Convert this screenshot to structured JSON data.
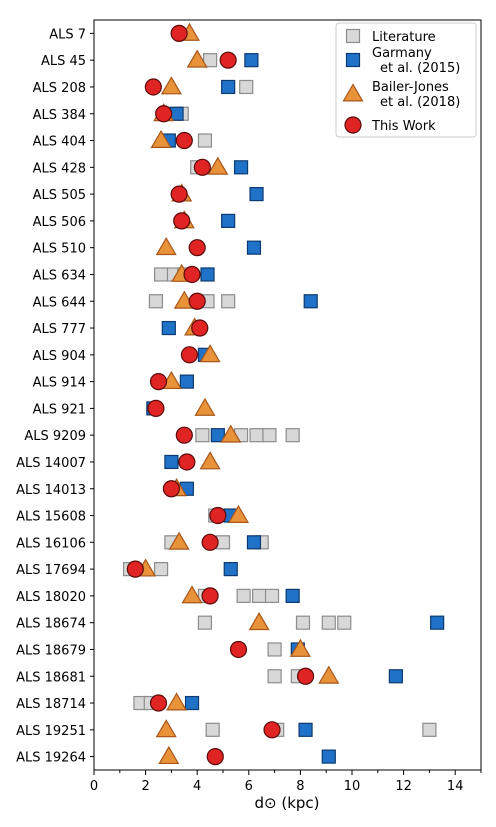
{
  "chart_data": {
    "type": "scatter",
    "xlabel": "d⊙ (kpc)",
    "xlim": [
      0,
      15
    ],
    "xticks": [
      0,
      2,
      4,
      6,
      8,
      10,
      12,
      14
    ],
    "grid": false,
    "legend_position": "top-right",
    "categories": [
      "ALS 7",
      "ALS 45",
      "ALS 208",
      "ALS 384",
      "ALS 404",
      "ALS 428",
      "ALS 505",
      "ALS 506",
      "ALS 510",
      "ALS 634",
      "ALS 644",
      "ALS 777",
      "ALS 904",
      "ALS 914",
      "ALS 921",
      "ALS 9209",
      "ALS 14007",
      "ALS 14013",
      "ALS 15608",
      "ALS 16106",
      "ALS 17694",
      "ALS 18020",
      "ALS 18674",
      "ALS 18679",
      "ALS 18681",
      "ALS 18714",
      "ALS 19251",
      "ALS 19264"
    ],
    "series": [
      {
        "name": "Literature",
        "marker": "square",
        "color": "#d8d8d8",
        "edge": "#8c8c8c",
        "points": [
          {
            "star": "ALS 45",
            "x": 4.5
          },
          {
            "star": "ALS 208",
            "x": 5.9
          },
          {
            "star": "ALS 384",
            "x": 3.4
          },
          {
            "star": "ALS 404",
            "x": 4.3
          },
          {
            "star": "ALS 428",
            "x": 4.0
          },
          {
            "star": "ALS 634",
            "x": 2.6
          },
          {
            "star": "ALS 634",
            "x": 3.1
          },
          {
            "star": "ALS 634",
            "x": 3.5
          },
          {
            "star": "ALS 644",
            "x": 2.4
          },
          {
            "star": "ALS 644",
            "x": 4.4
          },
          {
            "star": "ALS 644",
            "x": 5.2
          },
          {
            "star": "ALS 9209",
            "x": 4.2
          },
          {
            "star": "ALS 9209",
            "x": 5.7
          },
          {
            "star": "ALS 9209",
            "x": 6.3
          },
          {
            "star": "ALS 9209",
            "x": 6.8
          },
          {
            "star": "ALS 9209",
            "x": 7.7
          },
          {
            "star": "ALS 15608",
            "x": 4.7
          },
          {
            "star": "ALS 16106",
            "x": 3.0
          },
          {
            "star": "ALS 16106",
            "x": 5.0
          },
          {
            "star": "ALS 16106",
            "x": 6.5
          },
          {
            "star": "ALS 17694",
            "x": 1.4
          },
          {
            "star": "ALS 17694",
            "x": 2.6
          },
          {
            "star": "ALS 18020",
            "x": 4.3
          },
          {
            "star": "ALS 18020",
            "x": 5.8
          },
          {
            "star": "ALS 18020",
            "x": 6.4
          },
          {
            "star": "ALS 18020",
            "x": 6.9
          },
          {
            "star": "ALS 18674",
            "x": 4.3
          },
          {
            "star": "ALS 18674",
            "x": 8.1
          },
          {
            "star": "ALS 18674",
            "x": 9.1
          },
          {
            "star": "ALS 18674",
            "x": 9.7
          },
          {
            "star": "ALS 18679",
            "x": 7.0
          },
          {
            "star": "ALS 18681",
            "x": 7.0
          },
          {
            "star": "ALS 18681",
            "x": 7.9
          },
          {
            "star": "ALS 18714",
            "x": 1.8
          },
          {
            "star": "ALS 18714",
            "x": 2.2
          },
          {
            "star": "ALS 19251",
            "x": 4.6
          },
          {
            "star": "ALS 19251",
            "x": 7.1
          },
          {
            "star": "ALS 19251",
            "x": 13.0
          }
        ]
      },
      {
        "name": "Garmany et al. (2015)",
        "marker": "square",
        "color": "#1f72c8",
        "edge": "#0d3a70",
        "points": [
          {
            "star": "ALS 45",
            "x": 6.1
          },
          {
            "star": "ALS 208",
            "x": 5.2
          },
          {
            "star": "ALS 384",
            "x": 3.2
          },
          {
            "star": "ALS 404",
            "x": 2.9
          },
          {
            "star": "ALS 428",
            "x": 5.7
          },
          {
            "star": "ALS 505",
            "x": 6.3
          },
          {
            "star": "ALS 506",
            "x": 5.2
          },
          {
            "star": "ALS 510",
            "x": 6.2
          },
          {
            "star": "ALS 634",
            "x": 4.4
          },
          {
            "star": "ALS 644",
            "x": 8.4
          },
          {
            "star": "ALS 777",
            "x": 2.9
          },
          {
            "star": "ALS 904",
            "x": 4.3
          },
          {
            "star": "ALS 914",
            "x": 3.6
          },
          {
            "star": "ALS 921",
            "x": 2.3
          },
          {
            "star": "ALS 9209",
            "x": 4.8
          },
          {
            "star": "ALS 14007",
            "x": 3.0
          },
          {
            "star": "ALS 14013",
            "x": 3.6
          },
          {
            "star": "ALS 15608",
            "x": 5.3
          },
          {
            "star": "ALS 16106",
            "x": 6.2
          },
          {
            "star": "ALS 17694",
            "x": 5.3
          },
          {
            "star": "ALS 18020",
            "x": 7.7
          },
          {
            "star": "ALS 18674",
            "x": 13.3
          },
          {
            "star": "ALS 18679",
            "x": 7.9
          },
          {
            "star": "ALS 18681",
            "x": 11.7
          },
          {
            "star": "ALS 18714",
            "x": 3.8
          },
          {
            "star": "ALS 19251",
            "x": 8.2
          },
          {
            "star": "ALS 19264",
            "x": 9.1
          }
        ]
      },
      {
        "name": "Bailer-Jones et al. (2018)",
        "marker": "triangle",
        "color": "#e8923a",
        "edge": "#a8561a",
        "points": [
          {
            "star": "ALS 7",
            "x": 3.7
          },
          {
            "star": "ALS 45",
            "x": 4.0
          },
          {
            "star": "ALS 208",
            "x": 3.0
          },
          {
            "star": "ALS 384",
            "x": 2.7
          },
          {
            "star": "ALS 404",
            "x": 2.6
          },
          {
            "star": "ALS 428",
            "x": 4.8
          },
          {
            "star": "ALS 505",
            "x": 3.4
          },
          {
            "star": "ALS 506",
            "x": 3.5
          },
          {
            "star": "ALS 510",
            "x": 2.8
          },
          {
            "star": "ALS 634",
            "x": 3.4
          },
          {
            "star": "ALS 644",
            "x": 3.5
          },
          {
            "star": "ALS 777",
            "x": 3.9
          },
          {
            "star": "ALS 904",
            "x": 4.5
          },
          {
            "star": "ALS 914",
            "x": 3.0
          },
          {
            "star": "ALS 921",
            "x": 4.3
          },
          {
            "star": "ALS 9209",
            "x": 5.3
          },
          {
            "star": "ALS 14007",
            "x": 4.5
          },
          {
            "star": "ALS 14013",
            "x": 3.2
          },
          {
            "star": "ALS 15608",
            "x": 5.6
          },
          {
            "star": "ALS 16106",
            "x": 3.3
          },
          {
            "star": "ALS 17694",
            "x": 2.0
          },
          {
            "star": "ALS 18020",
            "x": 3.8
          },
          {
            "star": "ALS 18674",
            "x": 6.4
          },
          {
            "star": "ALS 18679",
            "x": 8.0
          },
          {
            "star": "ALS 18681",
            "x": 9.1
          },
          {
            "star": "ALS 18714",
            "x": 3.2
          },
          {
            "star": "ALS 19251",
            "x": 2.8
          },
          {
            "star": "ALS 19264",
            "x": 2.9
          }
        ]
      },
      {
        "name": "This Work",
        "marker": "circle",
        "color": "#e02424",
        "edge": "#5a0a0a",
        "points": [
          {
            "star": "ALS 7",
            "x": 3.3
          },
          {
            "star": "ALS 45",
            "x": 5.2
          },
          {
            "star": "ALS 208",
            "x": 2.3
          },
          {
            "star": "ALS 384",
            "x": 2.7
          },
          {
            "star": "ALS 404",
            "x": 3.5
          },
          {
            "star": "ALS 428",
            "x": 4.2
          },
          {
            "star": "ALS 505",
            "x": 3.3
          },
          {
            "star": "ALS 506",
            "x": 3.4
          },
          {
            "star": "ALS 510",
            "x": 4.0
          },
          {
            "star": "ALS 634",
            "x": 3.8
          },
          {
            "star": "ALS 644",
            "x": 4.0
          },
          {
            "star": "ALS 777",
            "x": 4.1
          },
          {
            "star": "ALS 904",
            "x": 3.7
          },
          {
            "star": "ALS 914",
            "x": 2.5
          },
          {
            "star": "ALS 921",
            "x": 2.4
          },
          {
            "star": "ALS 9209",
            "x": 3.5
          },
          {
            "star": "ALS 14007",
            "x": 3.6
          },
          {
            "star": "ALS 14013",
            "x": 3.0
          },
          {
            "star": "ALS 15608",
            "x": 4.8
          },
          {
            "star": "ALS 16106",
            "x": 4.5
          },
          {
            "star": "ALS 17694",
            "x": 1.6
          },
          {
            "star": "ALS 18020",
            "x": 4.5
          },
          {
            "star": "ALS 18679",
            "x": 5.6
          },
          {
            "star": "ALS 18681",
            "x": 8.2
          },
          {
            "star": "ALS 18714",
            "x": 2.5
          },
          {
            "star": "ALS 19251",
            "x": 6.9
          },
          {
            "star": "ALS 19264",
            "x": 4.7
          }
        ]
      }
    ]
  }
}
